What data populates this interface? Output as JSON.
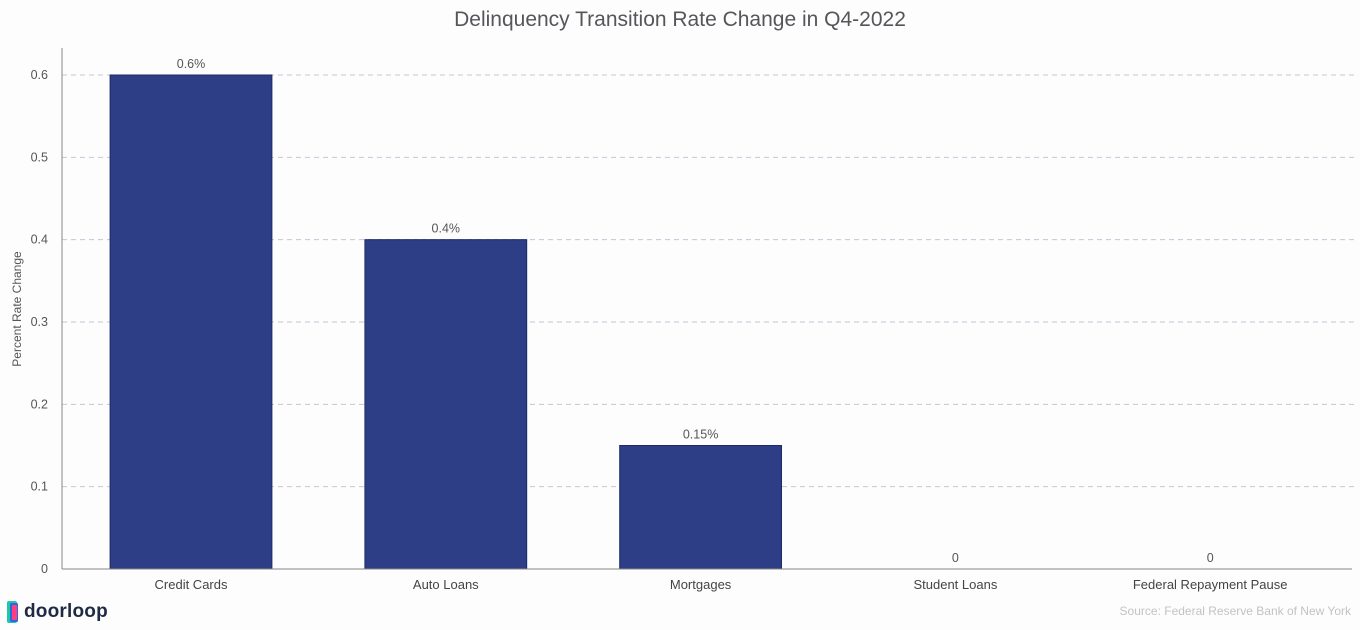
{
  "chart_data": {
    "type": "bar",
    "title": "Delinquency Transition Rate Change in Q4-2022",
    "xlabel": "",
    "ylabel": "Percent Rate Change",
    "categories": [
      "Credit Cards",
      "Auto Loans",
      "Mortgages",
      "Student Loans",
      "Federal Repayment Pause"
    ],
    "values": [
      0.6,
      0.4,
      0.15,
      0,
      0
    ],
    "data_labels": [
      "0.6%",
      "0.4%",
      "0.15%",
      "0",
      "0"
    ],
    "ylim": [
      0,
      0.6
    ],
    "yticks": [
      0,
      0.1,
      0.2,
      0.3,
      0.4,
      0.5,
      0.6
    ],
    "ytick_labels": [
      "0",
      "0.1",
      "0.2",
      "0.3",
      "0.4",
      "0.5",
      "0.6"
    ],
    "grid": true,
    "bar_color": "#2d3e86",
    "grid_color": "#c9c2d6"
  },
  "footer": {
    "source": "Source: Federal Reserve Bank of New York",
    "brand": "doorloop",
    "brand_icon": "doorloop-logo-icon"
  }
}
